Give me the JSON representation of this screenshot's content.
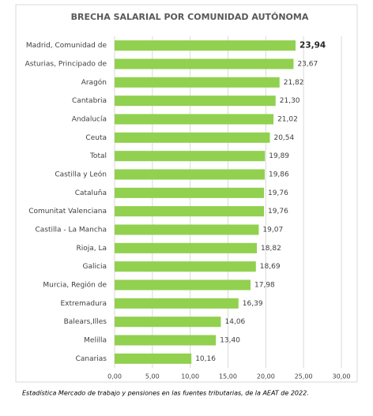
{
  "chart_data": {
    "type": "hbar",
    "title": "BRECHA SALARIAL POR COMUNIDAD AUTÓNOMA",
    "categories": [
      "Madrid, Comunidad de",
      "Asturias, Principado de",
      "Aragón",
      "Cantabria",
      "Andalucía",
      "Ceuta",
      "Total",
      "Castilla y León",
      "Cataluña",
      "Comunitat Valenciana",
      "Castilla - La Mancha",
      "Rioja, La",
      "Galicia",
      "Murcia, Región de",
      "Extremadura",
      "Balears,Illes",
      "Melilla",
      "Canarias"
    ],
    "values": [
      23.94,
      23.67,
      21.82,
      21.3,
      21.02,
      20.54,
      19.89,
      19.86,
      19.76,
      19.76,
      19.07,
      18.82,
      18.69,
      17.98,
      16.39,
      14.06,
      13.4,
      10.16
    ],
    "value_labels": [
      "23,94",
      "23,67",
      "21,82",
      "21,30",
      "21,02",
      "20,54",
      "19,89",
      "19,86",
      "19,76",
      "19,76",
      "19,07",
      "18,82",
      "18,69",
      "17,98",
      "16,39",
      "14,06",
      "13,40",
      "10,16"
    ],
    "color": "#92d050",
    "xlim": [
      0,
      30
    ],
    "xticks": [
      {
        "value": 0,
        "label": "0,00"
      },
      {
        "value": 5,
        "label": "5,00"
      },
      {
        "value": 10,
        "label": "10,00"
      },
      {
        "value": 15,
        "label": "15,00"
      },
      {
        "value": 20,
        "label": "20,00"
      },
      {
        "value": 25,
        "label": "25,00"
      },
      {
        "value": 30,
        "label": "30,00"
      }
    ],
    "grid": true,
    "source": "Estadística Mercado de trabajo y pensiones en las fuentes tributarias, de la AEAT de 2022."
  }
}
